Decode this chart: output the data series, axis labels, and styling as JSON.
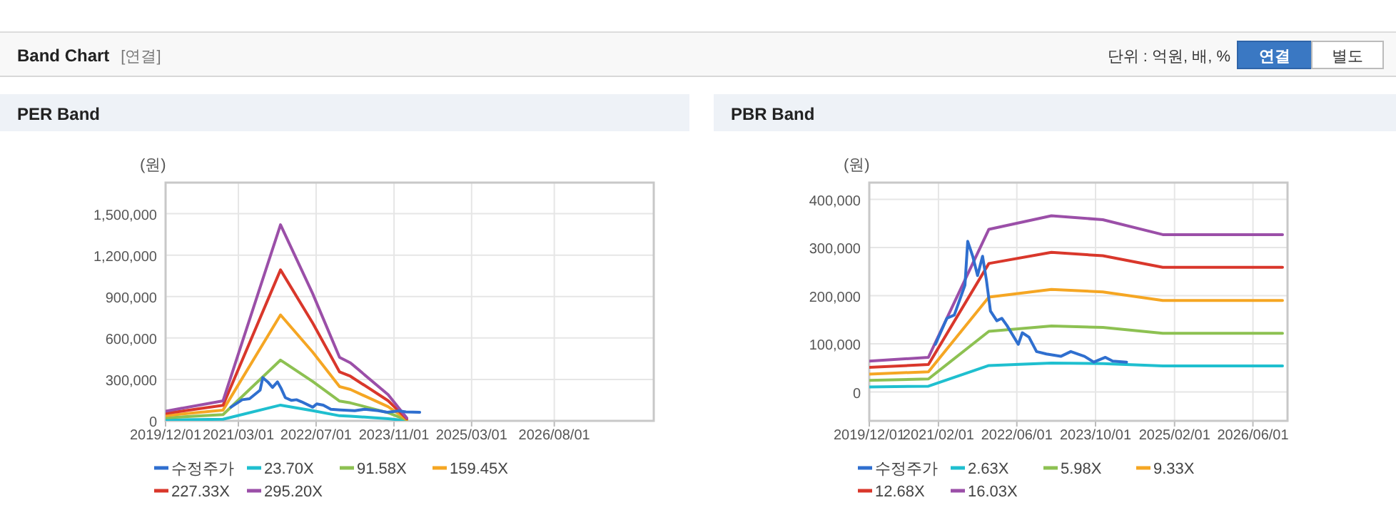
{
  "chart_data": [
    {
      "type": "other",
      "title": "Band Chart",
      "annotations": [
        "[연결]",
        "단위 : 억원, 배, %",
        "연결",
        "별도"
      ]
    },
    {
      "type": "line",
      "title": "PER Band",
      "ylabel": "(원)",
      "legend": "bottom",
      "grid": true,
      "line_style": "solid",
      "marker": "none",
      "xlim": [
        "2019-12-01",
        "2028-04-15"
      ],
      "ylim": [
        0,
        1725000
      ],
      "xticks": [
        {
          "value": "2019-12-01",
          "label": "2019/12/01"
        },
        {
          "value": "2021-03-01",
          "label": "2021/03/01"
        },
        {
          "value": "2022-07-01",
          "label": "2022/07/01"
        },
        {
          "value": "2023-11-01",
          "label": "2023/11/01"
        },
        {
          "value": "2025-03-01",
          "label": "2025/03/01"
        },
        {
          "value": "2026-08-01",
          "label": "2026/08/01"
        }
      ],
      "yticks": [
        0,
        {
          "value": 300000,
          "label": "300,000"
        },
        {
          "value": 600000,
          "label": "600,000"
        },
        {
          "value": 900000,
          "label": "900,000"
        },
        {
          "value": 1200000,
          "label": "1,200,000"
        },
        {
          "value": 1500000,
          "label": "1,500,000"
        }
      ],
      "series": [
        {
          "name": "수정주가",
          "color": "#2f6fcf",
          "x": [
            "2021-01-13",
            "2021-03-25",
            "2021-05-10",
            "2021-07-15",
            "2021-08-01",
            "2021-09-01",
            "2021-10-01",
            "2021-11-01",
            "2021-11-25",
            "2021-12-20",
            "2022-01-28",
            "2022-02-28",
            "2022-04-01",
            "2022-06-10",
            "2022-07-05",
            "2022-08-15",
            "2022-10-01",
            "2022-12-01",
            "2023-02-28",
            "2023-05-01",
            "2023-07-25",
            "2023-09-20",
            "2023-12-01",
            "2024-01-15",
            "2024-04-10"
          ],
          "values": [
            99000,
            153000,
            160000,
            222000,
            313000,
            282000,
            242000,
            282000,
            232000,
            168000,
            148000,
            153000,
            138000,
            99000,
            123000,
            114000,
            84000,
            79000,
            74000,
            84000,
            74000,
            62000,
            72000,
            64000,
            62000
          ]
        },
        {
          "name": "23.70X",
          "color": "#1fbfcf",
          "x": [
            "2019-12-01",
            "2020-11-25",
            "2021-11-20",
            "2022-06-10",
            "2022-11-25",
            "2023-02-01",
            "2023-09-25",
            "2024-01-20"
          ],
          "values": [
            5600,
            11600,
            114000,
            74000,
            37000,
            34000,
            15000,
            1600
          ]
        },
        {
          "name": "91.58X",
          "color": "#8dc152",
          "x": [
            "2019-12-01",
            "2020-11-25",
            "2021-11-20",
            "2022-06-10",
            "2022-11-25",
            "2023-02-01",
            "2023-09-25",
            "2024-01-20"
          ],
          "values": [
            22000,
            45000,
            440000,
            285000,
            143000,
            130000,
            59000,
            6000
          ]
        },
        {
          "name": "159.45X",
          "color": "#f5a623",
          "x": [
            "2019-12-01",
            "2020-11-25",
            "2021-11-20",
            "2022-06-10",
            "2022-11-25",
            "2023-02-01",
            "2023-09-25",
            "2024-01-20"
          ],
          "values": [
            38000,
            78000,
            767000,
            497000,
            248000,
            227000,
            103000,
            11000
          ]
        },
        {
          "name": "227.33X",
          "color": "#d9372b",
          "x": [
            "2019-12-01",
            "2020-11-25",
            "2021-11-20",
            "2022-06-10",
            "2022-11-25",
            "2023-02-01",
            "2023-09-25",
            "2024-01-20"
          ],
          "values": [
            54000,
            112000,
            1093000,
            708000,
            354000,
            323000,
            146000,
            15000
          ]
        },
        {
          "name": "295.20X",
          "color": "#9b4fa8",
          "x": [
            "2019-12-01",
            "2020-11-25",
            "2021-11-20",
            "2022-06-10",
            "2022-11-25",
            "2023-02-01",
            "2023-09-25",
            "2024-01-20"
          ],
          "values": [
            70000,
            145000,
            1420000,
            920000,
            460000,
            420000,
            190000,
            20000
          ]
        }
      ]
    },
    {
      "type": "line",
      "title": "PBR Band",
      "ylabel": "(원)",
      "legend": "bottom",
      "grid": true,
      "line_style": "solid",
      "marker": "none",
      "xlim": [
        "2019-12-01",
        "2027-01-01"
      ],
      "ylim": [
        -60000,
        435000
      ],
      "xticks": [
        {
          "value": "2019-12-01",
          "label": "2019/12/01"
        },
        {
          "value": "2021-02-01",
          "label": "2021/02/01"
        },
        {
          "value": "2022-06-01",
          "label": "2022/06/01"
        },
        {
          "value": "2023-10-01",
          "label": "2023/10/01"
        },
        {
          "value": "2025-02-01",
          "label": "2025/02/01"
        },
        {
          "value": "2026-06-01",
          "label": "2026/06/01"
        }
      ],
      "yticks": [
        0,
        {
          "value": 100000,
          "label": "100,000"
        },
        {
          "value": 200000,
          "label": "200,000"
        },
        {
          "value": 300000,
          "label": "300,000"
        },
        {
          "value": 400000,
          "label": "400,000"
        }
      ],
      "series": [
        {
          "name": "수정주가",
          "color": "#2f6fcf",
          "x": [
            "2021-01-13",
            "2021-03-25",
            "2021-05-10",
            "2021-07-15",
            "2021-08-01",
            "2021-09-01",
            "2021-10-01",
            "2021-11-01",
            "2021-11-25",
            "2021-12-20",
            "2022-01-28",
            "2022-02-28",
            "2022-04-01",
            "2022-06-10",
            "2022-07-05",
            "2022-08-15",
            "2022-10-01",
            "2022-12-01",
            "2023-02-28",
            "2023-05-01",
            "2023-07-25",
            "2023-09-20",
            "2023-12-01",
            "2024-01-15",
            "2024-04-10"
          ],
          "values": [
            99000,
            153000,
            160000,
            222000,
            313000,
            282000,
            242000,
            282000,
            232000,
            168000,
            148000,
            153000,
            138000,
            99000,
            123000,
            114000,
            84000,
            79000,
            74000,
            84000,
            74000,
            62000,
            72000,
            64000,
            62000
          ]
        },
        {
          "name": "2.63X",
          "color": "#1fbfcf",
          "x": [
            "2019-12-01",
            "2020-12-01",
            "2021-12-10",
            "2023-01-01",
            "2023-11-15",
            "2024-11-20",
            "2026-12-01"
          ],
          "values": [
            10500,
            12000,
            55000,
            60000,
            59000,
            54000,
            54000
          ]
        },
        {
          "name": "5.98X",
          "color": "#8dc152",
          "x": [
            "2019-12-01",
            "2020-12-01",
            "2021-12-10",
            "2023-01-01",
            "2023-11-15",
            "2024-11-20",
            "2026-12-01"
          ],
          "values": [
            24000,
            27000,
            126000,
            137000,
            134000,
            122000,
            122000
          ]
        },
        {
          "name": "9.33X",
          "color": "#f5a623",
          "x": [
            "2019-12-01",
            "2020-12-01",
            "2021-12-10",
            "2023-01-01",
            "2023-11-15",
            "2024-11-20",
            "2026-12-01"
          ],
          "values": [
            37000,
            42000,
            197000,
            213000,
            208000,
            190000,
            190000
          ]
        },
        {
          "name": "12.68X",
          "color": "#d9372b",
          "x": [
            "2019-12-01",
            "2020-12-01",
            "2021-12-10",
            "2023-01-01",
            "2023-11-15",
            "2024-11-20",
            "2026-12-01"
          ],
          "values": [
            51000,
            57000,
            267000,
            290000,
            283000,
            259000,
            259000
          ]
        },
        {
          "name": "16.03X",
          "color": "#9b4fa8",
          "x": [
            "2019-12-01",
            "2020-12-01",
            "2021-12-10",
            "2023-01-01",
            "2023-11-15",
            "2024-11-20",
            "2026-12-01"
          ],
          "values": [
            64000,
            72000,
            338000,
            366000,
            358000,
            327000,
            327000
          ]
        }
      ]
    }
  ]
}
